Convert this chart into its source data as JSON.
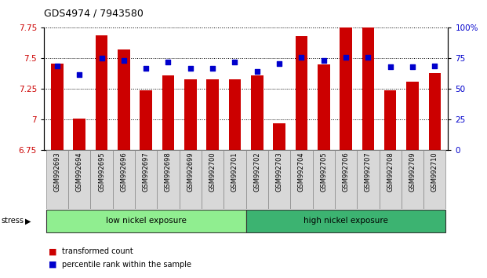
{
  "title": "GDS4974 / 7943580",
  "samples": [
    "GSM992693",
    "GSM992694",
    "GSM992695",
    "GSM992696",
    "GSM992697",
    "GSM992698",
    "GSM992699",
    "GSM992700",
    "GSM992701",
    "GSM992702",
    "GSM992703",
    "GSM992704",
    "GSM992705",
    "GSM992706",
    "GSM992707",
    "GSM992708",
    "GSM992709",
    "GSM992710"
  ],
  "transformed_count": [
    7.46,
    7.01,
    7.69,
    7.57,
    7.24,
    7.36,
    7.33,
    7.33,
    7.33,
    7.36,
    6.97,
    7.68,
    7.45,
    7.75,
    7.76,
    7.24,
    7.31,
    7.38
  ],
  "percentile_rank": [
    69,
    62,
    75,
    73,
    67,
    72,
    67,
    67,
    72,
    64,
    71,
    76,
    73,
    76,
    76,
    68,
    68,
    69
  ],
  "groups": [
    {
      "label": "low nickel exposure",
      "start": 0,
      "end": 9,
      "color": "#90EE90"
    },
    {
      "label": "high nickel exposure",
      "start": 9,
      "end": 18,
      "color": "#3CB371"
    }
  ],
  "stress_label": "stress",
  "ylim_left": [
    6.75,
    7.75
  ],
  "ylim_right": [
    0,
    100
  ],
  "yticks_left": [
    6.75,
    7.0,
    7.25,
    7.5,
    7.75
  ],
  "ytick_labels_left": [
    "6.75",
    "7",
    "7.25",
    "7.5",
    "7.75"
  ],
  "yticks_right": [
    0,
    25,
    50,
    75,
    100
  ],
  "ytick_labels_right": [
    "0",
    "25",
    "50",
    "75",
    "100%"
  ],
  "bar_color": "#CC0000",
  "dot_color": "#0000CC",
  "bar_bottom": 6.75,
  "legend_items": [
    {
      "label": "transformed count",
      "color": "#CC0000"
    },
    {
      "label": "percentile rank within the sample",
      "color": "#0000CC"
    }
  ]
}
